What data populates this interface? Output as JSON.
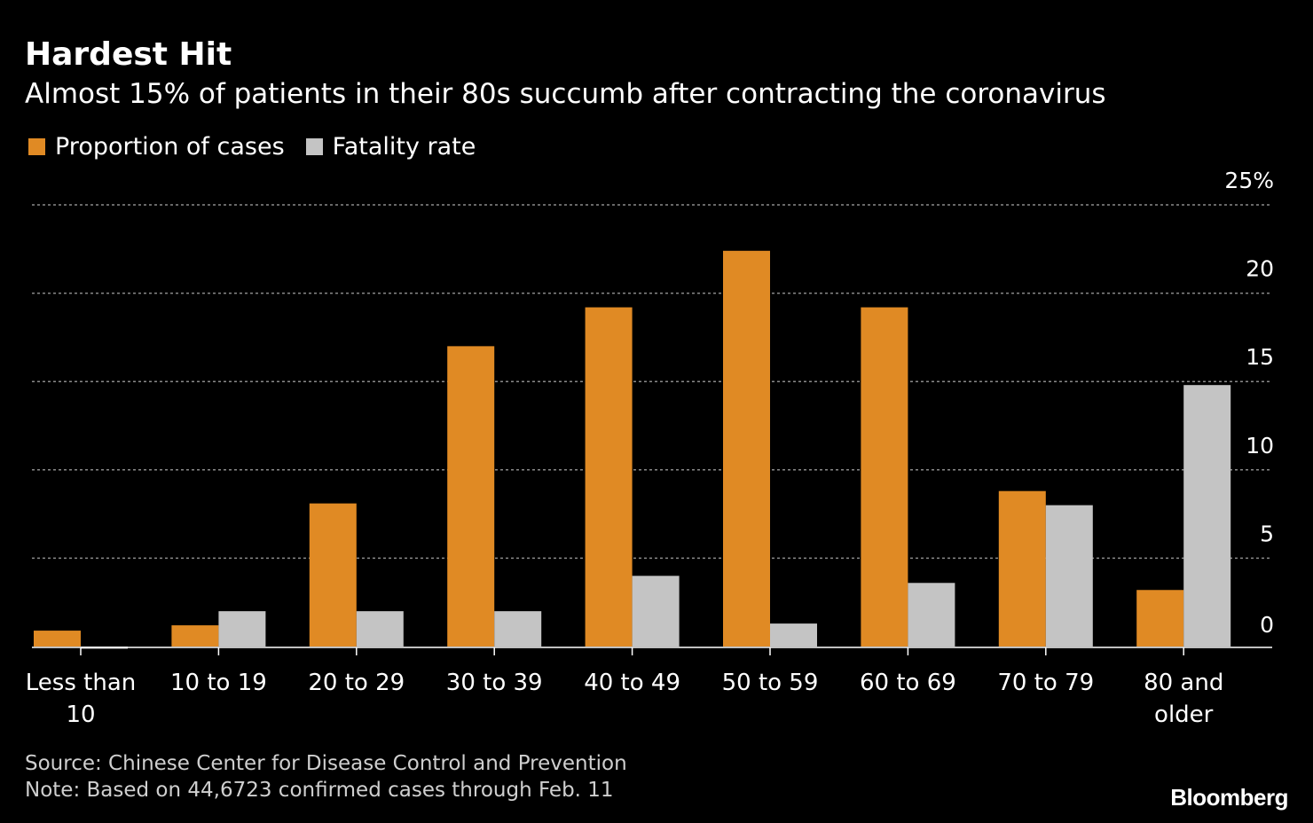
{
  "title": "Hardest Hit",
  "subtitle": "Almost 15% of patients in their 80s succumb after contracting the coronavirus",
  "colors": {
    "background": "#000000",
    "proportion": "#e08a24",
    "fatality": "#c4c4c4",
    "grid": "#8a8a8a",
    "text": "#ffffff"
  },
  "legend": {
    "proportion_label": "Proportion of cases",
    "fatality_label": "Fatality rate"
  },
  "chart_data": {
    "type": "bar",
    "title": "Hardest Hit",
    "subtitle": "Almost 15% of patients in their 80s succumb after contracting the coronavirus",
    "categories": [
      [
        "Less than",
        "10"
      ],
      [
        "10 to 19"
      ],
      [
        "20 to 29"
      ],
      [
        "30 to 39"
      ],
      [
        "40 to 49"
      ],
      [
        "50 to 59"
      ],
      [
        "60 to 69"
      ],
      [
        "70 to 79"
      ],
      [
        "80 and",
        "older"
      ]
    ],
    "series": [
      {
        "name": "Proportion of cases",
        "color": "#e08a24",
        "values": [
          0.9,
          1.2,
          8.1,
          17.0,
          19.2,
          22.4,
          19.2,
          8.8,
          3.2
        ]
      },
      {
        "name": "Fatality rate",
        "color": "#c4c4c4",
        "values": [
          0,
          2.0,
          2.0,
          2.0,
          4.0,
          1.3,
          3.6,
          8.0,
          14.8
        ]
      }
    ],
    "ylim": [
      0,
      25
    ],
    "yticks": [
      {
        "value": 0,
        "label": "0"
      },
      {
        "value": 5,
        "label": "5"
      },
      {
        "value": 10,
        "label": "10"
      },
      {
        "value": 15,
        "label": "15"
      },
      {
        "value": 20,
        "label": "20"
      },
      {
        "value": 25,
        "label": "25%"
      }
    ],
    "xlabel": "",
    "ylabel": "",
    "y_axis_side": "right",
    "grid": true
  },
  "footer": {
    "source": "Source: Chinese Center for Disease Control and Prevention",
    "note": "Note: Based on 44,6723 confirmed cases through Feb. 11",
    "brand": "Bloomberg"
  }
}
